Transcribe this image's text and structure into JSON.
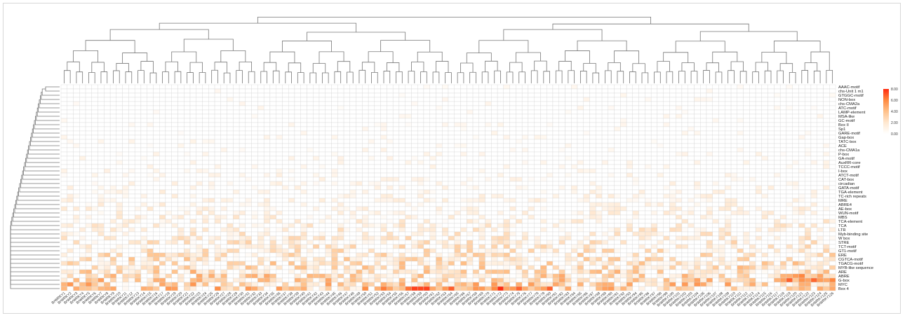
{
  "chart_data": {
    "type": "heatmap",
    "title": "",
    "xlabel": "",
    "ylabel": "",
    "rows": [
      "AAAC-motif",
      "chs-Unit 1 m1",
      "GTGGC-motif",
      "NON-box",
      "chs-CMA2a",
      "ATC-motif",
      "LAMP-element",
      "MSA-like",
      "GC-motif",
      "Box II",
      "Sp1",
      "GARE-motif",
      "Gap-box",
      "TATC-box",
      "ACE",
      "chs-CMA1a",
      "P-box",
      "GA-motif",
      "AuxRR-core",
      "TCCC-motif",
      "I-box",
      "ATCT-motif",
      "CAT-box",
      "circadian",
      "GATA-motif",
      "TGA-element",
      "TC-rich repeats",
      "MRE",
      "ABRE4",
      "AE-box",
      "WUN-motif",
      "MBS",
      "TCA-element",
      "TCA",
      "LTR",
      "Myb-binding site",
      "W box",
      "STRE",
      "TCT-motif",
      "GT1-motif",
      "ERE",
      "CGTCA-motif",
      "TGACG-motif",
      "MYB-like sequence",
      "ARE",
      "ABRE",
      "G-box",
      "MYC",
      "Box 4"
    ],
    "column_count": 126,
    "column_label_prefix": "BrWRKY",
    "color_scale": {
      "min": 0,
      "max": 8,
      "colors": [
        "#ffffff",
        "#ffe8d1",
        "#ffc18a",
        "#ff8a40",
        "#ff2a10"
      ],
      "ticks": [
        "8.00",
        "6.00",
        "4.00",
        "2.00",
        "0.00"
      ]
    },
    "legend_placement": "right",
    "dendrograms": [
      "top",
      "left"
    ],
    "grid": true
  }
}
